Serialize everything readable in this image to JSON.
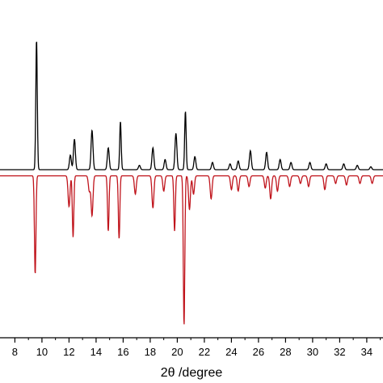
{
  "chart_data": {
    "type": "line",
    "title": "",
    "xlabel": "2θ /degree",
    "ylabel": "",
    "xlim": [
      6.9,
      35.2
    ],
    "ylim": [
      -1.0,
      1.0
    ],
    "x_ticks": [
      8,
      10,
      12,
      14,
      16,
      18,
      20,
      22,
      24,
      26,
      28,
      30,
      32,
      34
    ],
    "x_tick_labels": [
      "8",
      "10",
      "12",
      "14",
      "16",
      "18",
      "20",
      "22",
      "24",
      "26",
      "28",
      "30",
      "32",
      "34"
    ],
    "grid": false,
    "legend": "none",
    "series": [
      {
        "color": "#000000",
        "baseline": 0.0,
        "peaks": [
          {
            "x": 9.6,
            "h": 0.89
          },
          {
            "x": 12.1,
            "h": 0.1
          },
          {
            "x": 12.4,
            "h": 0.21
          },
          {
            "x": 13.7,
            "h": 0.27
          },
          {
            "x": 14.9,
            "h": 0.15
          },
          {
            "x": 15.8,
            "h": 0.33
          },
          {
            "x": 17.2,
            "h": 0.03
          },
          {
            "x": 18.2,
            "h": 0.15
          },
          {
            "x": 19.1,
            "h": 0.07
          },
          {
            "x": 19.9,
            "h": 0.25
          },
          {
            "x": 20.6,
            "h": 0.4
          },
          {
            "x": 21.3,
            "h": 0.09
          },
          {
            "x": 22.6,
            "h": 0.05
          },
          {
            "x": 23.9,
            "h": 0.04
          },
          {
            "x": 24.5,
            "h": 0.06
          },
          {
            "x": 25.4,
            "h": 0.13
          },
          {
            "x": 26.6,
            "h": 0.12
          },
          {
            "x": 27.6,
            "h": 0.07
          },
          {
            "x": 28.4,
            "h": 0.05
          },
          {
            "x": 29.8,
            "h": 0.05
          },
          {
            "x": 31.0,
            "h": 0.04
          },
          {
            "x": 32.3,
            "h": 0.04
          },
          {
            "x": 33.3,
            "h": 0.03
          },
          {
            "x": 34.3,
            "h": 0.02
          }
        ]
      },
      {
        "color": "#c0141c",
        "baseline": -0.04,
        "peaks": [
          {
            "x": 9.5,
            "h": -0.64
          },
          {
            "x": 12.0,
            "h": -0.2
          },
          {
            "x": 12.3,
            "h": -0.4
          },
          {
            "x": 13.5,
            "h": -0.1
          },
          {
            "x": 13.7,
            "h": -0.26
          },
          {
            "x": 14.9,
            "h": -0.36
          },
          {
            "x": 15.7,
            "h": -0.41
          },
          {
            "x": 16.9,
            "h": -0.12
          },
          {
            "x": 18.2,
            "h": -0.21
          },
          {
            "x": 19.0,
            "h": -0.1
          },
          {
            "x": 19.8,
            "h": -0.36
          },
          {
            "x": 20.5,
            "h": -0.97
          },
          {
            "x": 20.9,
            "h": -0.22
          },
          {
            "x": 21.2,
            "h": -0.12
          },
          {
            "x": 22.5,
            "h": -0.15
          },
          {
            "x": 24.0,
            "h": -0.09
          },
          {
            "x": 24.5,
            "h": -0.1
          },
          {
            "x": 25.3,
            "h": -0.07
          },
          {
            "x": 26.5,
            "h": -0.08
          },
          {
            "x": 26.9,
            "h": -0.15
          },
          {
            "x": 27.4,
            "h": -0.1
          },
          {
            "x": 28.3,
            "h": -0.07
          },
          {
            "x": 29.1,
            "h": -0.05
          },
          {
            "x": 29.7,
            "h": -0.07
          },
          {
            "x": 30.9,
            "h": -0.09
          },
          {
            "x": 31.7,
            "h": -0.05
          },
          {
            "x": 32.5,
            "h": -0.06
          },
          {
            "x": 33.5,
            "h": -0.05
          },
          {
            "x": 34.4,
            "h": -0.05
          }
        ]
      }
    ]
  }
}
